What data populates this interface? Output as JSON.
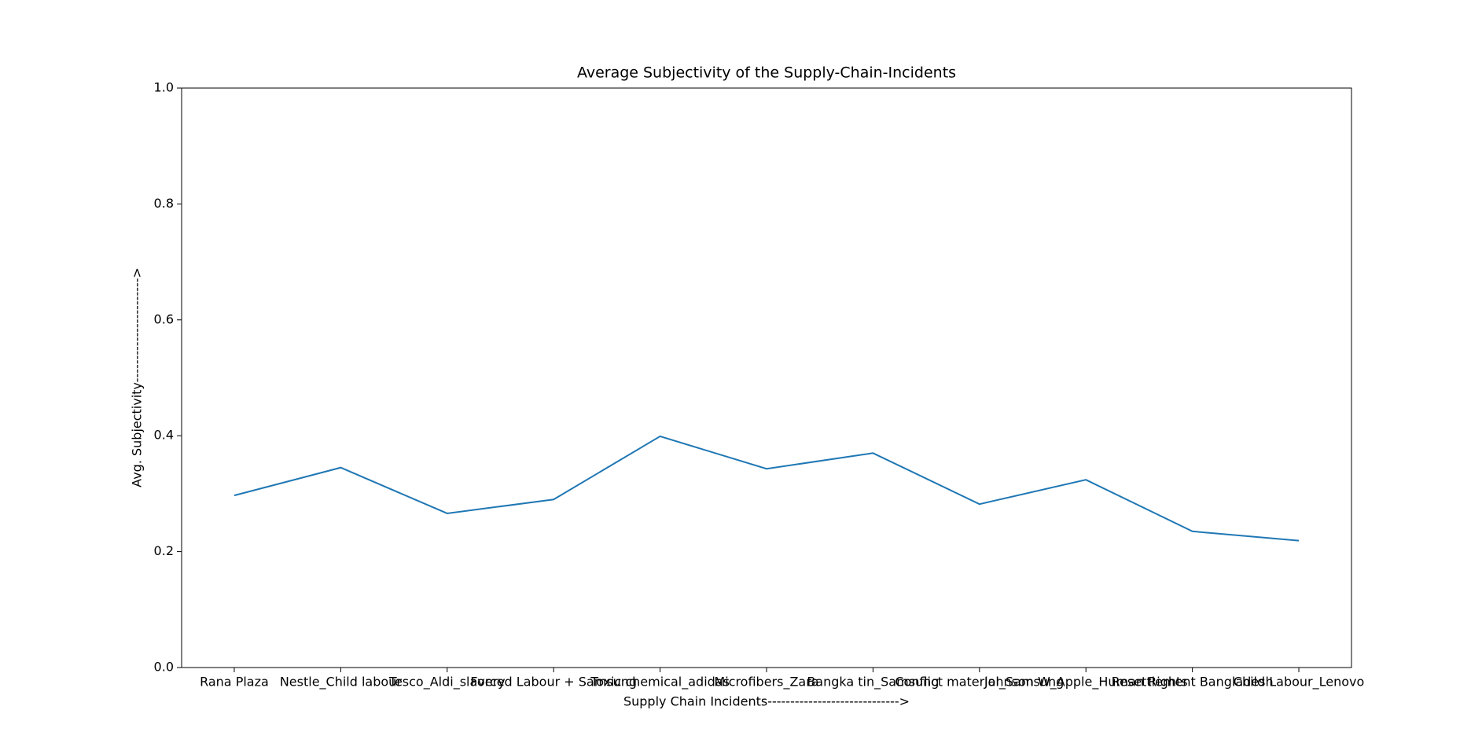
{
  "chart_data": {
    "type": "line",
    "title": "Average Subjectivity of the Supply-Chain-Incidents",
    "x_label": "Supply Chain Incidents----------------------------->",
    "y_label": "Avg. Subjectivity----------------------->",
    "categories": [
      "Rana Plaza",
      "Nestle_Child labour",
      "Tesco_Aldi_slavery",
      "Forced Labour + Samsung",
      "Toxic chemical_adidas",
      "Microfibers_Zara",
      "Bangka tin_Samsung",
      "Conflict material_Samsung",
      "Johnson W_Apple_Human Rights",
      "Resettlement Bangladesh",
      "Child Labour_Lenovo"
    ],
    "series": [
      {
        "name": "Avg. Subjectivity",
        "color": "#1f77b4",
        "values": [
          0.297,
          0.345,
          0.266,
          0.29,
          0.399,
          0.343,
          0.37,
          0.282,
          0.324,
          0.235,
          0.219
        ]
      }
    ],
    "ylim": [
      0.0,
      1.0
    ],
    "yticks": [
      {
        "value": 0,
        "label": "0.0"
      },
      0.2,
      0.4,
      0.6,
      0.8,
      {
        "value": 1,
        "label": "1.0"
      }
    ],
    "grid": false
  }
}
